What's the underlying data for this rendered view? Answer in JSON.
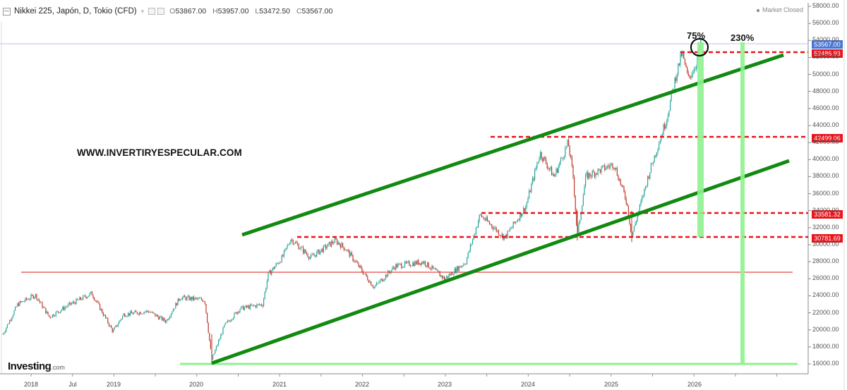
{
  "header": {
    "title": "Nikkei 225, Japón, D, Tokio (CFD)",
    "open_label": "O",
    "open": "53867.00",
    "high_label": "H",
    "high": "53957.00",
    "low_label": "L",
    "low": "53472.50",
    "close_label": "C",
    "close": "53567.00",
    "market_status": "Market Closed"
  },
  "watermark": "WWW.INVERTIRYESPECULAR.COM",
  "logo": {
    "main": "Investing",
    "suffix": ".com"
  },
  "annotations": {
    "pct_small": "75%",
    "pct_large": "230%"
  },
  "price_tags": [
    {
      "value": "53567.00",
      "price": 53567,
      "color": "#4a77d4",
      "kind": "current"
    },
    {
      "value": "52486.93",
      "price": 52486.93,
      "color": "#e8141c",
      "kind": "resistance"
    },
    {
      "value": "42499.06",
      "price": 42499.06,
      "color": "#e8141c",
      "kind": "resistance"
    },
    {
      "value": "33581.32",
      "price": 33581.32,
      "color": "#e8141c",
      "kind": "support"
    },
    {
      "value": "30781.69",
      "price": 30781.69,
      "color": "#e8141c",
      "kind": "support"
    }
  ],
  "colors": {
    "channel": "#128a12",
    "dashed": "#e8141c",
    "pink_line": "#f08a8a",
    "target_bar": "#8ff28f",
    "base_line": "#8ff28f",
    "candle_up": "#26a69a",
    "candle_down": "#c0392b",
    "axis": "#777777"
  },
  "chart_data": {
    "type": "line",
    "title": "Nikkei 225, Japón, D, Tokio (CFD)",
    "xlabel": "",
    "ylabel": "",
    "ylim": [
      15000,
      59000
    ],
    "grid": false,
    "legend": "none",
    "x_ticks": [
      "2018",
      "Jul",
      "2019",
      "2020",
      "2021",
      "2022",
      "2023",
      "2024",
      "2025",
      "2026"
    ],
    "y_ticks": [
      "16000.00",
      "18000.00",
      "20000.00",
      "22000.00",
      "24000.00",
      "26000.00",
      "28000.00",
      "30000.00",
      "32000.00",
      "34000.00",
      "36000.00",
      "38000.00",
      "40000.00",
      "42000.00",
      "44000.00",
      "46000.00",
      "48000.00",
      "50000.00",
      "52000.00",
      "54000.00",
      "56000.00",
      "58000.00"
    ],
    "series": [
      {
        "name": "Nikkei 225 (approx. closes)",
        "x": [
          "2017-10",
          "2018-01",
          "2018-03",
          "2018-05",
          "2018-10",
          "2018-12",
          "2019-03",
          "2019-08",
          "2019-12",
          "2020-02",
          "2020-03",
          "2020-06",
          "2020-11",
          "2021-02",
          "2021-08",
          "2021-09",
          "2022-03",
          "2022-08",
          "2022-10",
          "2023-01",
          "2023-06",
          "2023-10",
          "2024-03",
          "2024-07",
          "2024-08",
          "2024-09",
          "2024-12",
          "2025-04",
          "2025-07",
          "2025-10",
          "2025-11",
          "2026-01"
        ],
        "values": [
          20000,
          24000,
          21000,
          22500,
          24200,
          20000,
          21500,
          20500,
          24000,
          23000,
          16500,
          22500,
          26500,
          30500,
          27500,
          30500,
          25000,
          29000,
          26000,
          26000,
          33500,
          30800,
          40500,
          42000,
          31500,
          38000,
          40000,
          31000,
          40000,
          52500,
          48500,
          53567
        ]
      }
    ],
    "horizontal_levels": [
      {
        "label": "52486.93",
        "style": "dashed-red"
      },
      {
        "label": "42499.06",
        "style": "dashed-red"
      },
      {
        "label": "33581.32",
        "style": "dashed-red"
      },
      {
        "label": "30781.69",
        "style": "dashed-red"
      },
      {
        "label": "24300",
        "style": "solid-pink"
      },
      {
        "label": "16000",
        "style": "solid-lightgreen"
      }
    ],
    "trend_channel": {
      "upper": {
        "from": [
          "2020-07",
          28800
        ],
        "to": [
          "2026-09",
          52200
        ]
      },
      "lower": {
        "from": [
          "2020-03",
          16200
        ],
        "to": [
          "2026-09",
          39800
        ]
      }
    },
    "annotations": [
      {
        "text": "75%",
        "at": "2026-01",
        "note": "bar from 30781.69 to ~53567"
      },
      {
        "text": "230%",
        "at": "2026-05",
        "note": "bar from 16000 to ~53567"
      }
    ]
  }
}
